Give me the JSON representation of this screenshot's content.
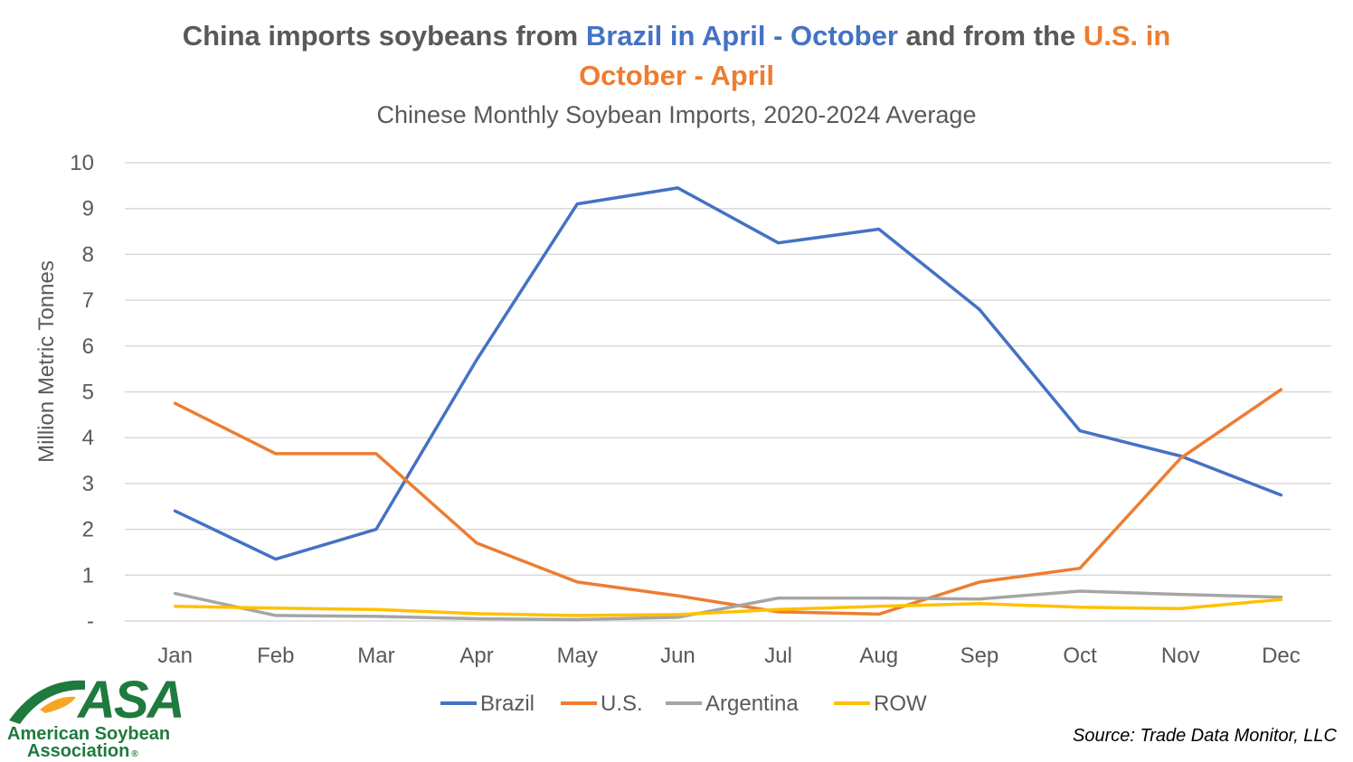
{
  "title": {
    "part1": "China imports soybeans from ",
    "part2": "Brazil in April - October",
    "part3": " and from the ",
    "part4": "U.S. in",
    "part5": "October - April"
  },
  "subtitle": "Chinese Monthly Soybean Imports, 2020-2024 Average",
  "source": "Source: Trade Data Monitor, LLC",
  "logo": {
    "letters": "ASA",
    "line1": "American Soybean",
    "line2": "Association",
    "mark": "®"
  },
  "colors": {
    "brazil": "#4472c4",
    "us": "#ed7d31",
    "argentina": "#a5a5a5",
    "row": "#ffc000",
    "grid": "#d9d9d9",
    "text": "#595959",
    "logo_green": "#1f7a3d",
    "logo_swoosh": "#f5a623"
  },
  "chart_data": {
    "type": "line",
    "title": "China imports soybeans from Brazil in April - October and from the U.S. in October - April",
    "subtitle": "Chinese Monthly Soybean Imports, 2020-2024 Average",
    "xlabel": "",
    "ylabel": "Million Metric Tonnes",
    "ylim": [
      0,
      10
    ],
    "yticks": [
      0,
      1,
      2,
      3,
      4,
      5,
      6,
      7,
      8,
      9,
      10
    ],
    "ytick_labels": [
      "-",
      "1",
      "2",
      "3",
      "4",
      "5",
      "6",
      "7",
      "8",
      "9",
      "10"
    ],
    "grid": true,
    "legend_position": "bottom",
    "categories": [
      "Jan",
      "Feb",
      "Mar",
      "Apr",
      "May",
      "Jun",
      "Jul",
      "Aug",
      "Sep",
      "Oct",
      "Nov",
      "Dec"
    ],
    "series": [
      {
        "name": "Brazil",
        "key": "brazil",
        "values": [
          2.4,
          1.35,
          2.0,
          5.7,
          9.1,
          9.45,
          8.25,
          8.55,
          6.8,
          4.15,
          3.6,
          2.75
        ]
      },
      {
        "name": "U.S.",
        "key": "us",
        "values": [
          4.75,
          3.65,
          3.65,
          1.7,
          0.85,
          0.55,
          0.2,
          0.15,
          0.85,
          1.15,
          3.55,
          5.05
        ]
      },
      {
        "name": "Argentina",
        "key": "argentina",
        "values": [
          0.6,
          0.12,
          0.1,
          0.05,
          0.03,
          0.08,
          0.5,
          0.5,
          0.48,
          0.65,
          0.58,
          0.52
        ]
      },
      {
        "name": "ROW",
        "key": "row",
        "values": [
          0.32,
          0.28,
          0.25,
          0.16,
          0.12,
          0.14,
          0.25,
          0.32,
          0.38,
          0.3,
          0.27,
          0.47
        ]
      }
    ]
  }
}
